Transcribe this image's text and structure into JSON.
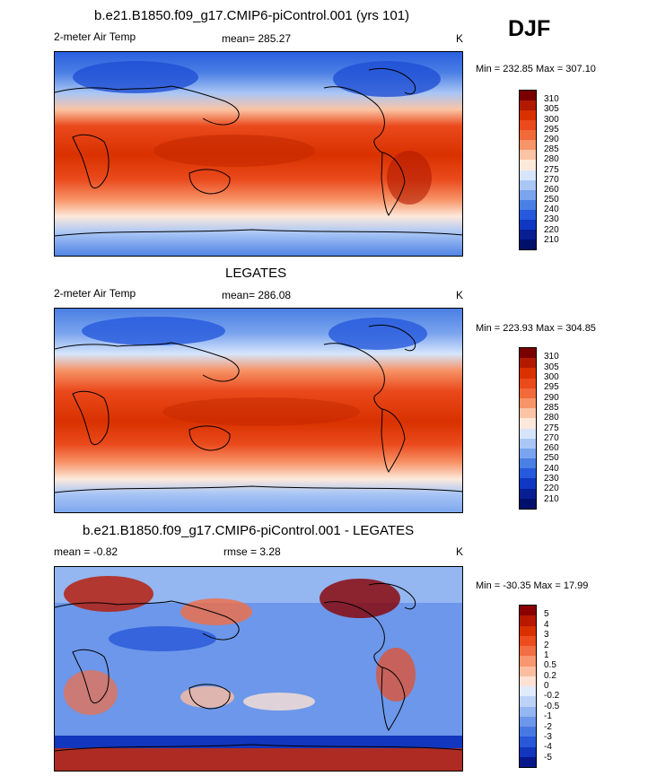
{
  "season": "DJF",
  "panels": [
    {
      "title": "b.e21.B1850.f09_g17.CMIP6-piControl.001 (yrs 101)",
      "variable": "2-meter Air Temp",
      "stat": "mean= 285.27",
      "units": "K",
      "minmax": "Min = 232.85 Max = 307.10",
      "colorbar": {
        "labels": [
          "310",
          "305",
          "300",
          "295",
          "290",
          "285",
          "280",
          "275",
          "270",
          "260",
          "250",
          "240",
          "230",
          "220",
          "210"
        ],
        "colors": [
          "#7a0000",
          "#b21a00",
          "#d93100",
          "#ea4a1c",
          "#f06a3a",
          "#f79468",
          "#fbc4a4",
          "#fde9dc",
          "#d6e5fb",
          "#a9c6f5",
          "#7aa4ee",
          "#4a7fe4",
          "#2659dc",
          "#0f37c2",
          "#071f92",
          "#00106a"
        ]
      }
    },
    {
      "title": "LEGATES",
      "variable": "2-meter Air Temp",
      "stat": "mean= 286.08",
      "units": "K",
      "minmax": "Min = 223.93 Max = 304.85",
      "colorbar": {
        "labels": [
          "310",
          "305",
          "300",
          "295",
          "290",
          "285",
          "280",
          "275",
          "270",
          "260",
          "250",
          "240",
          "230",
          "220",
          "210"
        ],
        "colors": [
          "#7a0000",
          "#b21a00",
          "#d93100",
          "#ea4a1c",
          "#f06a3a",
          "#f79468",
          "#fbc4a4",
          "#fde9dc",
          "#d6e5fb",
          "#a9c6f5",
          "#7aa4ee",
          "#4a7fe4",
          "#2659dc",
          "#0f37c2",
          "#071f92",
          "#00106a"
        ]
      }
    },
    {
      "title": "b.e21.B1850.f09_g17.CMIP6-piControl.001 - LEGATES",
      "variable": "mean = -0.82",
      "stat": "rmse = 3.28",
      "units": "K",
      "minmax": "Min = -30.35 Max = 17.99",
      "colorbar": {
        "labels": [
          "5",
          "4",
          "3",
          "2",
          "1",
          "0.5",
          "0.2",
          "0",
          "-0.2",
          "-0.5",
          "-1",
          "-2",
          "-3",
          "-4",
          "-5"
        ],
        "colors": [
          "#8a0000",
          "#b81800",
          "#d93000",
          "#ec4c1e",
          "#f36e44",
          "#f8966e",
          "#fbbda0",
          "#fde2d4",
          "#e0ebfb",
          "#bcd3f7",
          "#94b6f1",
          "#6c97ea",
          "#4878e2",
          "#2858d8",
          "#1236bd",
          "#06188a"
        ]
      }
    }
  ]
}
